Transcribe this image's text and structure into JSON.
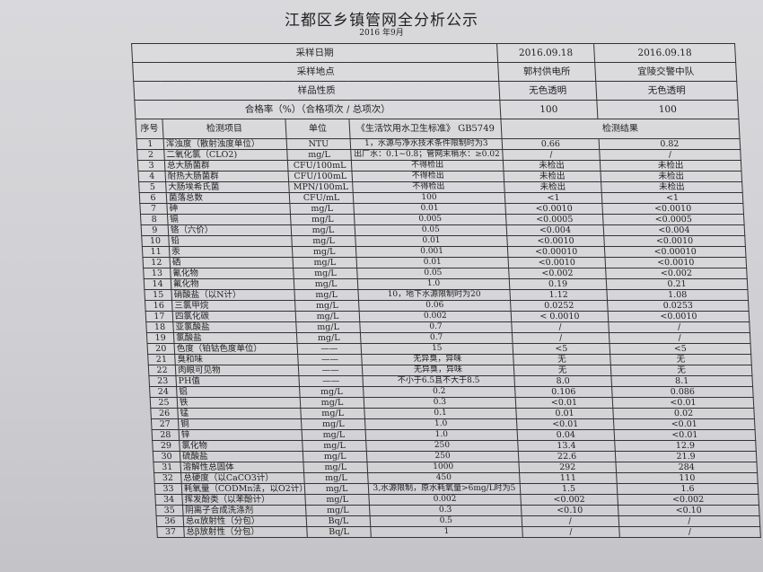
{
  "title": "江都区乡镇管网全分析公示",
  "subtitle": "2016 年9月",
  "meta": [
    {
      "label": "采样日期",
      "v1": "2016.09.18",
      "v2": "2016.09.18"
    },
    {
      "label": "采样地点",
      "v1": "郭村供电所",
      "v2": "宜陵交警中队"
    },
    {
      "label": "样品性质",
      "v1": "无色透明",
      "v2": "无色透明"
    },
    {
      "label": "合格率（%）（合格项次 / 总项次）",
      "v1": "100",
      "v2": "100"
    }
  ],
  "headers": {
    "seq": "序号",
    "item": "检测项目",
    "unit": "单位",
    "std": "《生活饮用水卫生标准》 GB5749",
    "result": "检测结果"
  },
  "rows": [
    [
      "1",
      "浑浊度（散射浊度单位）",
      "NTU",
      "1，水源与净水技术条件限制时为3",
      "0.66",
      "0.82"
    ],
    [
      "2",
      "二氧化氯（CLO2)",
      "mg/L",
      "出厂水：0.1~0.8；管网末梢水：≥0.02",
      "/",
      "/"
    ],
    [
      "3",
      "总大肠菌群",
      "CFU/100mL",
      "不得检出",
      "未检出",
      "未检出"
    ],
    [
      "4",
      "耐热大肠菌群",
      "CFU/100mL",
      "不得检出",
      "未检出",
      "未检出"
    ],
    [
      "5",
      "大肠埃希氏菌",
      "MPN/100mL",
      "不得检出",
      "未检出",
      "未检出"
    ],
    [
      "6",
      "菌落总数",
      "CFU/mL",
      "100",
      "<1",
      "<1"
    ],
    [
      "7",
      "砷",
      "mg/L",
      "0.01",
      "<0.0010",
      "<0.0010"
    ],
    [
      "8",
      "镉",
      "mg/L",
      "0.005",
      "<0.0005",
      "<0.0005"
    ],
    [
      "9",
      "铬（六价）",
      "mg/L",
      "0.05",
      "<0.004",
      "<0.004"
    ],
    [
      "10",
      "铅",
      "mg/L",
      "0.01",
      "<0.0010",
      "<0.0010"
    ],
    [
      "11",
      "汞",
      "mg/L",
      "0.001",
      "<0.00010",
      "<0.00010"
    ],
    [
      "12",
      "硒",
      "mg/L",
      "0.01",
      "<0.0010",
      "<0.0010"
    ],
    [
      "13",
      "氰化物",
      "mg/L",
      "0.05",
      "<0.002",
      "<0.002"
    ],
    [
      "14",
      "氟化物",
      "mg/L",
      "1.0",
      "0.19",
      "0.21"
    ],
    [
      "15",
      "硝酸盐（以N计）",
      "mg/L",
      "10，地下水源限制时为20",
      "1.12",
      "1.08"
    ],
    [
      "16",
      "三氯甲烷",
      "mg/L",
      "0.06",
      "0.0252",
      "0.0253"
    ],
    [
      "17",
      "四氯化碳",
      "mg/L",
      "0.002",
      "< 0.0010",
      "<0.0010"
    ],
    [
      "18",
      "亚氯酸盐",
      "mg/L",
      "0.7",
      "/",
      "/"
    ],
    [
      "19",
      "氯酸盐",
      "mg/L",
      "0.7",
      "/",
      "/"
    ],
    [
      "20",
      "色度（铂钴色度单位）",
      "——",
      "15",
      "<5",
      "<5"
    ],
    [
      "21",
      "臭和味",
      "——",
      "无异臭，异味",
      "无",
      "无"
    ],
    [
      "22",
      "肉眼可见物",
      "——",
      "无异臭，异味",
      "无",
      "无"
    ],
    [
      "23",
      "PH值",
      "——",
      "不小于6.5且不大于8.5",
      "8.0",
      "8.1"
    ],
    [
      "24",
      "铝",
      "mg/L",
      "0.2",
      "0.106",
      "0.086"
    ],
    [
      "25",
      "铁",
      "mg/L",
      "0.3",
      "<0.01",
      "<0.01"
    ],
    [
      "26",
      "锰",
      "mg/L",
      "0.1",
      "0.01",
      "0.02"
    ],
    [
      "27",
      "铜",
      "mg/L",
      "1.0",
      "<0.01",
      "<0.01"
    ],
    [
      "28",
      "锌",
      "mg/L",
      "1.0",
      "0.04",
      "<0.01"
    ],
    [
      "29",
      "氯化物",
      "mg/L",
      "250",
      "13.4",
      "12.9"
    ],
    [
      "30",
      "硫酸盐",
      "mg/L",
      "250",
      "22.6",
      "21.9"
    ],
    [
      "31",
      "溶解性总固体",
      "mg/L",
      "1000",
      "292",
      "284"
    ],
    [
      "32",
      "总硬度（以CaCO3计）",
      "mg/L",
      "450",
      "111",
      "110"
    ],
    [
      "33",
      "耗氧量（CODMn法，以O2计）",
      "mg/L",
      "3,水源限制，原水耗氧量>6mg/L时为5",
      "1.5",
      "1.6"
    ],
    [
      "34",
      "挥发酚类（以苯酚计）",
      "mg/L",
      "0.002",
      "<0.002",
      "<0.002"
    ],
    [
      "35",
      "阴离子合成洗涤剂",
      "mg/L",
      "0.3",
      "<0.10",
      "<0.10"
    ],
    [
      "36",
      "总α放射性（分包）",
      "Bq/L",
      "0.5",
      "/",
      "/"
    ],
    [
      "37",
      "总β放射性（分包）",
      "Bq/L",
      "1",
      "/",
      "/"
    ]
  ]
}
